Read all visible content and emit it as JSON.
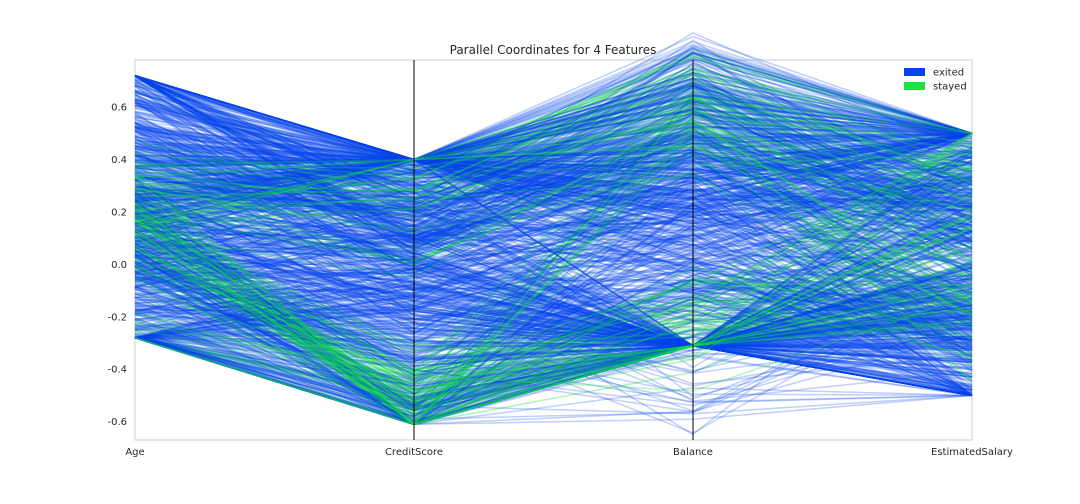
{
  "chart_data": {
    "type": "parallel_coordinates",
    "title": "Parallel Coordinates for 4 Features",
    "axes": [
      "Age",
      "CreditScore",
      "Balance",
      "EstimatedSalary"
    ],
    "ylim": [
      -0.67,
      0.78
    ],
    "yticks": [
      -0.6,
      -0.4,
      -0.2,
      0.0,
      0.2,
      0.4,
      0.6
    ],
    "ytick_labels": [
      "-0.6",
      "-0.4",
      "-0.2",
      "0.0",
      "0.2",
      "0.4",
      "0.6"
    ],
    "legend": {
      "placement": "top-right"
    },
    "series": [
      {
        "name": "exited",
        "color": "#0342ec",
        "samples": [
          [
            0.72,
            0.4,
            0.55,
            0.5
          ],
          [
            0.58,
            0.4,
            0.52,
            0.45
          ],
          [
            0.52,
            0.38,
            0.48,
            0.4
          ],
          [
            0.45,
            0.3,
            0.4,
            0.3
          ],
          [
            0.4,
            0.2,
            0.3,
            0.2
          ],
          [
            0.3,
            0.1,
            -0.31,
            0.1
          ],
          [
            0.2,
            0.0,
            0.2,
            0.0
          ],
          [
            0.1,
            -0.1,
            -0.31,
            -0.1
          ],
          [
            0.0,
            -0.2,
            0.1,
            -0.2
          ],
          [
            -0.1,
            -0.3,
            -0.31,
            -0.3
          ],
          [
            -0.2,
            -0.4,
            0.0,
            -0.4
          ],
          [
            -0.28,
            -0.48,
            -0.31,
            -0.5
          ],
          [
            0.35,
            0.4,
            0.35,
            0.45
          ],
          [
            -0.28,
            -0.3,
            -0.31,
            -0.45
          ]
        ]
      },
      {
        "name": "stayed",
        "color": "#12e63d",
        "samples": [
          [
            0.2,
            -0.6,
            -0.31,
            0.1
          ],
          [
            0.15,
            -0.55,
            0.55,
            0.3
          ],
          [
            0.25,
            0.35,
            0.7,
            0.45
          ],
          [
            0.1,
            -0.5,
            -0.15,
            -0.2
          ],
          [
            0.3,
            0.3,
            0.6,
            0.05
          ],
          [
            -0.25,
            -0.58,
            -0.31,
            -0.1
          ],
          [
            0.05,
            -0.4,
            -0.2,
            0.4
          ],
          [
            0.18,
            0.1,
            0.5,
            -0.3
          ]
        ]
      }
    ]
  }
}
